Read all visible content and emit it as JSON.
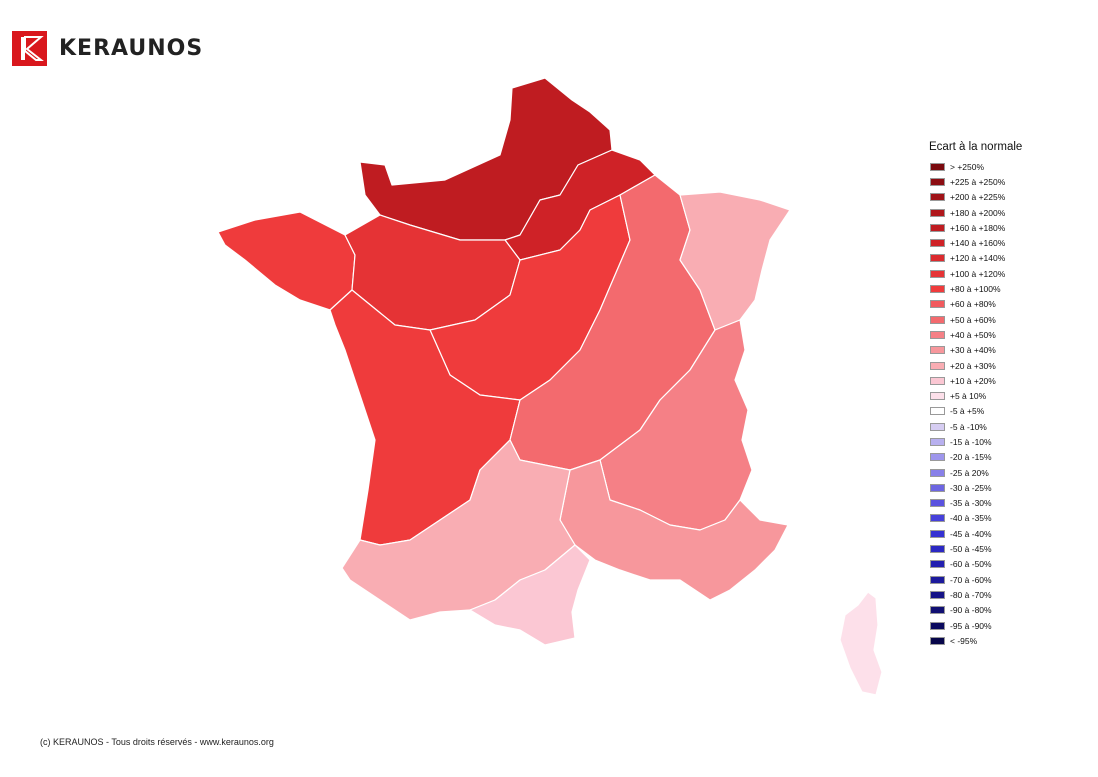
{
  "brand": {
    "name": "KERAUNOS",
    "color": "#d9171d"
  },
  "legend": {
    "title": "Ecart à la normale",
    "items": [
      {
        "label": "> +250%",
        "color": "#7a0a0e"
      },
      {
        "label": "+225 à +250%",
        "color": "#8c0d12"
      },
      {
        "label": "+200 à +225%",
        "color": "#a01318"
      },
      {
        "label": "+180 à +200%",
        "color": "#b0171c"
      },
      {
        "label": "+160 à +180%",
        "color": "#bf1c21"
      },
      {
        "label": "+140 à +160%",
        "color": "#cf2227"
      },
      {
        "label": "+120 à +140%",
        "color": "#db2a2e"
      },
      {
        "label": "+100 à +120%",
        "color": "#e53335"
      },
      {
        "label": "+80 à +100%",
        "color": "#ef3b3c"
      },
      {
        "label": "+60 à +80%",
        "color": "#f15a5e"
      },
      {
        "label": "+50 à +60%",
        "color": "#f36a6e"
      },
      {
        "label": "+40 à +50%",
        "color": "#f58086"
      },
      {
        "label": "+30 à +40%",
        "color": "#f7979c"
      },
      {
        "label": "+20 à +30%",
        "color": "#f9adb3"
      },
      {
        "label": "+10 à +20%",
        "color": "#fbc7d3"
      },
      {
        "label": "+5 à 10%",
        "color": "#fde0ea"
      },
      {
        "label": "-5 à +5%",
        "color": "#ffffff"
      },
      {
        "label": "-5 à -10%",
        "color": "#d6cdf2"
      },
      {
        "label": "-15 à -10%",
        "color": "#b8b0ef"
      },
      {
        "label": "-20 à -15%",
        "color": "#9e96ec"
      },
      {
        "label": "-25 à 20%",
        "color": "#8880e8"
      },
      {
        "label": "-30 à -25%",
        "color": "#6d66e2"
      },
      {
        "label": "-35 à -30%",
        "color": "#5a52df"
      },
      {
        "label": "-40 à -35%",
        "color": "#4640da"
      },
      {
        "label": "-45 à -40%",
        "color": "#3430d2"
      },
      {
        "label": "-50 à -45%",
        "color": "#2b28c3"
      },
      {
        "label": "-60 à -50%",
        "color": "#2320b0"
      },
      {
        "label": "-70 à -60%",
        "color": "#1c1a9c"
      },
      {
        "label": "-80 à -70%",
        "color": "#161487"
      },
      {
        "label": "-90 à -80%",
        "color": "#100f72"
      },
      {
        "label": "-95 à -90%",
        "color": "#0b0a5e"
      },
      {
        "label": "< -95%",
        "color": "#07064a"
      }
    ]
  },
  "map": {
    "regions": [
      {
        "name": "northwest",
        "color": "#bf1c21"
      },
      {
        "name": "north-east-nord",
        "color": "#cf2227"
      },
      {
        "name": "brittany",
        "color": "#ef3b3c"
      },
      {
        "name": "loire-center",
        "color": "#e53335"
      },
      {
        "name": "center",
        "color": "#ef3b3c"
      },
      {
        "name": "southwest",
        "color": "#ef3b3c"
      },
      {
        "name": "east",
        "color": "#f36a6e"
      },
      {
        "name": "alsace-jura",
        "color": "#f9adb3"
      },
      {
        "name": "southeast",
        "color": "#f58086"
      },
      {
        "name": "mediterranean",
        "color": "#f7979c"
      },
      {
        "name": "pyrenees",
        "color": "#f9adb3"
      },
      {
        "name": "occitanie-coast",
        "color": "#fbc7d3"
      },
      {
        "name": "corsica",
        "color": "#fde0ea"
      }
    ]
  },
  "footer": {
    "copyright": "(c) KERAUNOS - Tous droits réservés - www.keraunos.org"
  }
}
